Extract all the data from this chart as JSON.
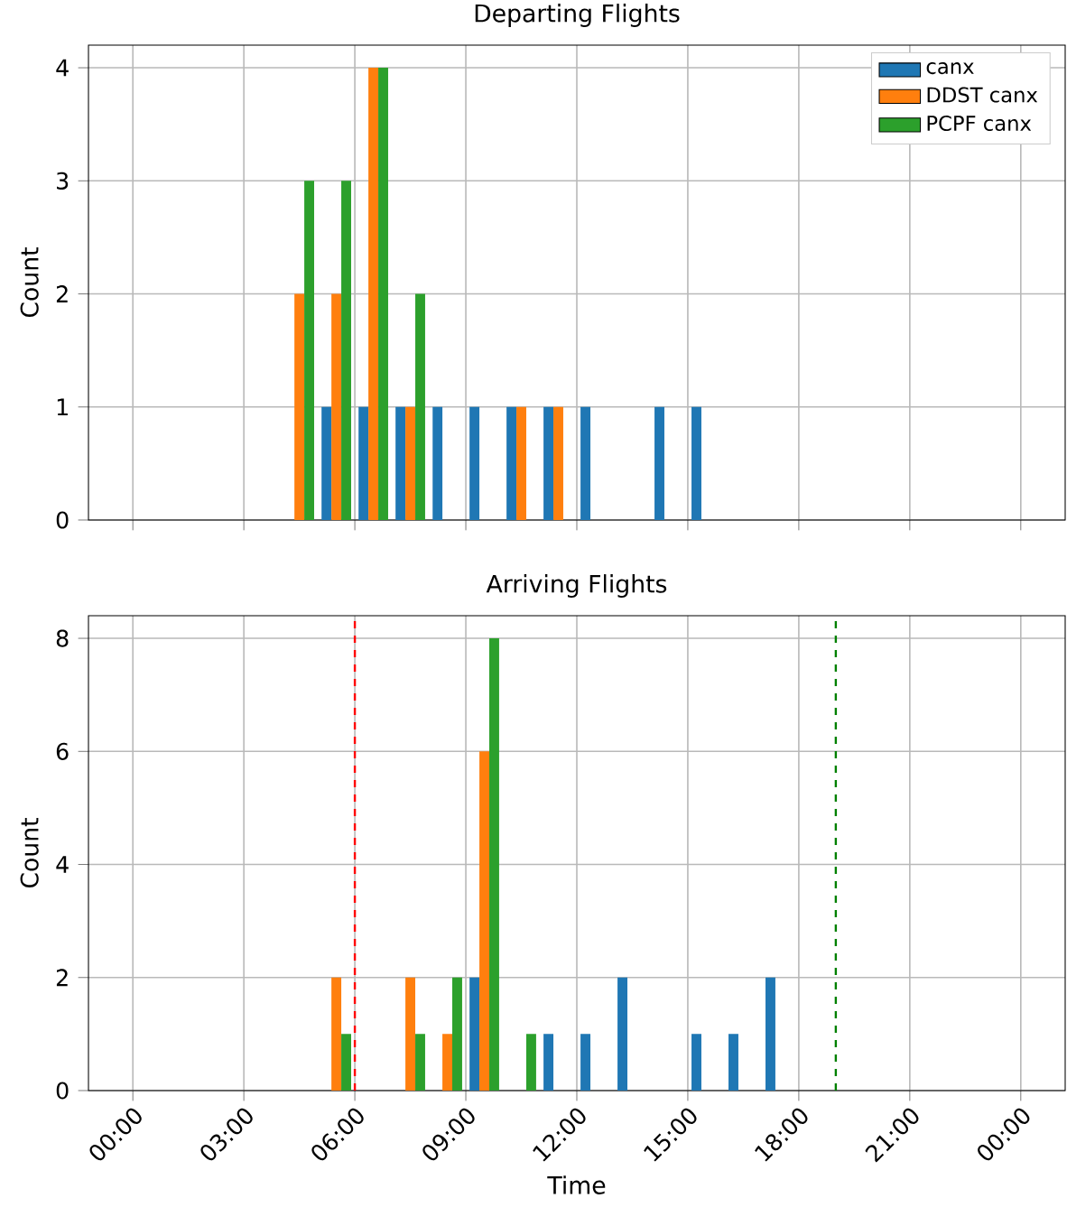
{
  "chart_data": [
    {
      "type": "histogram",
      "title": "Departing Flights",
      "ylabel": "Count",
      "bins": [
        4,
        5,
        6,
        7,
        8,
        9,
        10,
        11,
        12,
        13,
        14,
        15,
        16
      ],
      "series": [
        {
          "name": "canx",
          "color": "#1f77b4",
          "values": [
            0,
            1,
            1,
            1,
            1,
            1,
            1,
            1,
            1,
            0,
            1,
            1
          ]
        },
        {
          "name": "DDST canx",
          "color": "#ff7f0e",
          "values": [
            2,
            2,
            4,
            1,
            0,
            0,
            1,
            1,
            0,
            0,
            0,
            0
          ]
        },
        {
          "name": "PCPF canx",
          "color": "#2ca02c",
          "values": [
            3,
            3,
            4,
            2,
            0,
            0,
            0,
            0,
            0,
            0,
            0,
            0
          ]
        }
      ],
      "xlim": [
        -1.2,
        25.2
      ],
      "xticks": [
        {
          "value": 0,
          "label": null
        },
        {
          "value": 3,
          "label": null
        },
        {
          "value": 6,
          "label": null
        },
        {
          "value": 9,
          "label": null
        },
        {
          "value": 12,
          "label": null
        },
        {
          "value": 15,
          "label": null
        },
        {
          "value": 18,
          "label": null
        },
        {
          "value": 21,
          "label": null
        },
        {
          "value": 24,
          "label": null
        }
      ],
      "ylim": [
        0,
        4.2
      ],
      "yticks": [
        0,
        1,
        2,
        3,
        4
      ],
      "tick_labels": "y",
      "grid": true,
      "legend": "top right"
    },
    {
      "type": "histogram",
      "title": "Arriving Flights",
      "xlabel": "Time",
      "ylabel": "Count",
      "bins": [
        5,
        6,
        7,
        8,
        9,
        10,
        11,
        12,
        13,
        14,
        15,
        16,
        17,
        18
      ],
      "series": [
        {
          "color": "#1f77b4",
          "values": [
            0,
            0,
            0,
            0,
            2,
            0,
            1,
            1,
            2,
            0,
            1,
            1,
            2
          ]
        },
        {
          "color": "#ff7f0e",
          "values": [
            2,
            0,
            2,
            1,
            6,
            0,
            0,
            0,
            0,
            0,
            0,
            0,
            0
          ]
        },
        {
          "color": "#2ca02c",
          "values": [
            1,
            0,
            1,
            2,
            8,
            1,
            0,
            0,
            0,
            0,
            0,
            0,
            0
          ]
        }
      ],
      "xlim": [
        -1.2,
        25.2
      ],
      "xticks": [
        {
          "value": 0,
          "label": "00:00"
        },
        {
          "value": 3,
          "label": "03:00"
        },
        {
          "value": 6,
          "label": "06:00"
        },
        {
          "value": 9,
          "label": "09:00"
        },
        {
          "value": 12,
          "label": "12:00"
        },
        {
          "value": 15,
          "label": "15:00"
        },
        {
          "value": 18,
          "label": "18:00"
        },
        {
          "value": 21,
          "label": "21:00"
        },
        {
          "value": 24,
          "label": "00:00"
        }
      ],
      "ylim": [
        0,
        8.4
      ],
      "yticks": [
        0,
        2,
        4,
        6,
        8
      ],
      "ref_lines": [
        {
          "axis": "x",
          "value": 6,
          "color": "#ff0000",
          "line_style": "dashed"
        },
        {
          "axis": "x",
          "value": 19,
          "color": "#008000",
          "line_style": "dashed"
        }
      ],
      "grid": true
    }
  ]
}
